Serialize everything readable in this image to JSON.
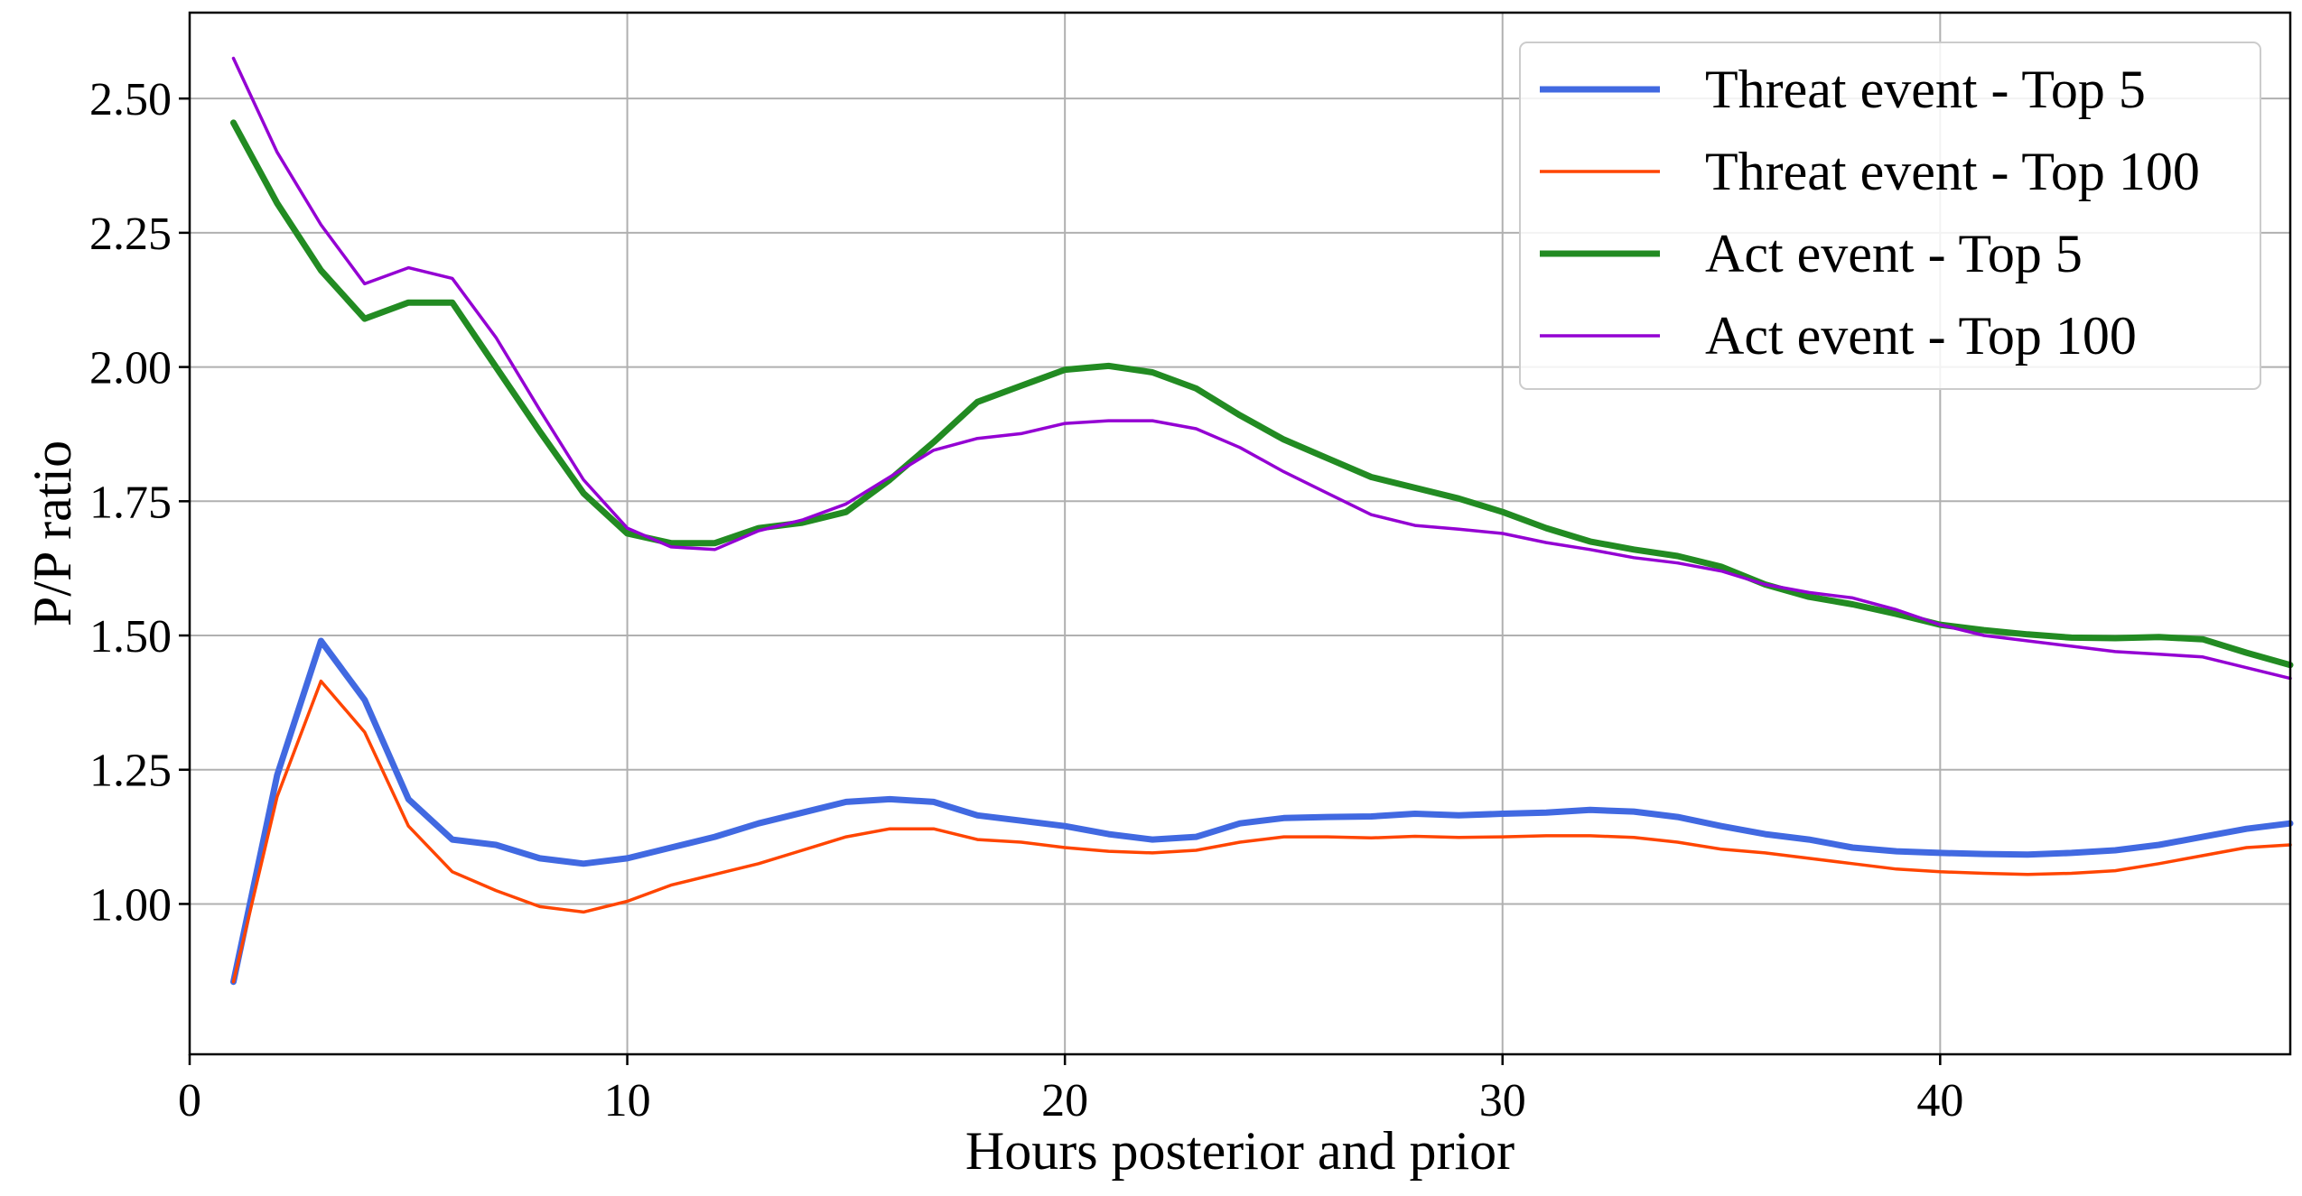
{
  "chart_data": {
    "type": "line",
    "xlabel": "Hours posterior and prior",
    "ylabel": "P/P ratio",
    "xlim": [
      0,
      48
    ],
    "ylim": [
      0.72,
      2.66
    ],
    "xticks": [
      0,
      10,
      20,
      30,
      40
    ],
    "xtick_labels": [
      "0",
      "10",
      "20",
      "30",
      "40"
    ],
    "yticks": [
      1.0,
      1.25,
      1.5,
      1.75,
      2.0,
      2.25,
      2.5
    ],
    "ytick_labels": [
      "1.00",
      "1.25",
      "1.50",
      "1.75",
      "2.00",
      "2.25",
      "2.50"
    ],
    "grid": true,
    "legend_position": "top-right",
    "x": [
      1,
      2,
      3,
      4,
      5,
      6,
      7,
      8,
      9,
      10,
      11,
      12,
      13,
      14,
      15,
      16,
      17,
      18,
      19,
      20,
      21,
      22,
      23,
      24,
      25,
      26,
      27,
      28,
      29,
      30,
      31,
      32,
      33,
      34,
      35,
      36,
      37,
      38,
      39,
      40,
      41,
      42,
      43,
      44,
      45,
      46,
      47,
      48
    ],
    "series": [
      {
        "name": "Threat event - Top 5",
        "color": "#4169E1",
        "line_width": 7,
        "values": [
          0.855,
          1.24,
          1.49,
          1.38,
          1.195,
          1.12,
          1.11,
          1.085,
          1.075,
          1.085,
          1.105,
          1.125,
          1.15,
          1.17,
          1.19,
          1.195,
          1.19,
          1.165,
          1.155,
          1.145,
          1.13,
          1.12,
          1.125,
          1.15,
          1.16,
          1.162,
          1.163,
          1.168,
          1.165,
          1.168,
          1.17,
          1.175,
          1.172,
          1.162,
          1.145,
          1.13,
          1.12,
          1.105,
          1.098,
          1.095,
          1.093,
          1.092,
          1.095,
          1.1,
          1.11,
          1.125,
          1.14,
          1.15
        ]
      },
      {
        "name": "Threat event - Top 100",
        "color": "#FF4500",
        "line_width": 3.5,
        "values": [
          0.855,
          1.2,
          1.415,
          1.32,
          1.145,
          1.06,
          1.025,
          0.995,
          0.985,
          1.005,
          1.035,
          1.055,
          1.075,
          1.1,
          1.125,
          1.14,
          1.14,
          1.12,
          1.115,
          1.105,
          1.098,
          1.095,
          1.1,
          1.115,
          1.125,
          1.125,
          1.123,
          1.126,
          1.124,
          1.125,
          1.127,
          1.127,
          1.124,
          1.115,
          1.102,
          1.095,
          1.085,
          1.075,
          1.065,
          1.06,
          1.057,
          1.055,
          1.057,
          1.062,
          1.075,
          1.09,
          1.105,
          1.11
        ]
      },
      {
        "name": "Act event - Top 5",
        "color": "#228B22",
        "line_width": 7,
        "values": [
          2.455,
          2.305,
          2.18,
          2.09,
          2.12,
          2.12,
          2.0,
          1.88,
          1.765,
          1.69,
          1.672,
          1.672,
          1.7,
          1.71,
          1.73,
          1.79,
          1.86,
          1.935,
          1.965,
          1.995,
          2.002,
          1.99,
          1.96,
          1.91,
          1.865,
          1.83,
          1.795,
          1.775,
          1.755,
          1.73,
          1.7,
          1.675,
          1.66,
          1.648,
          1.628,
          1.595,
          1.572,
          1.558,
          1.54,
          1.52,
          1.51,
          1.502,
          1.496,
          1.495,
          1.497,
          1.493,
          1.468,
          1.445
        ]
      },
      {
        "name": "Act event - Top 100",
        "color": "#9400D3",
        "line_width": 3.5,
        "values": [
          2.575,
          2.4,
          2.265,
          2.155,
          2.185,
          2.165,
          2.055,
          1.92,
          1.79,
          1.7,
          1.665,
          1.66,
          1.695,
          1.715,
          1.745,
          1.795,
          1.845,
          1.867,
          1.876,
          1.895,
          1.9,
          1.9,
          1.885,
          1.85,
          1.805,
          1.765,
          1.725,
          1.705,
          1.698,
          1.69,
          1.673,
          1.66,
          1.645,
          1.635,
          1.62,
          1.595,
          1.58,
          1.57,
          1.548,
          1.52,
          1.5,
          1.49,
          1.48,
          1.47,
          1.465,
          1.46,
          1.44,
          1.42
        ]
      }
    ]
  }
}
